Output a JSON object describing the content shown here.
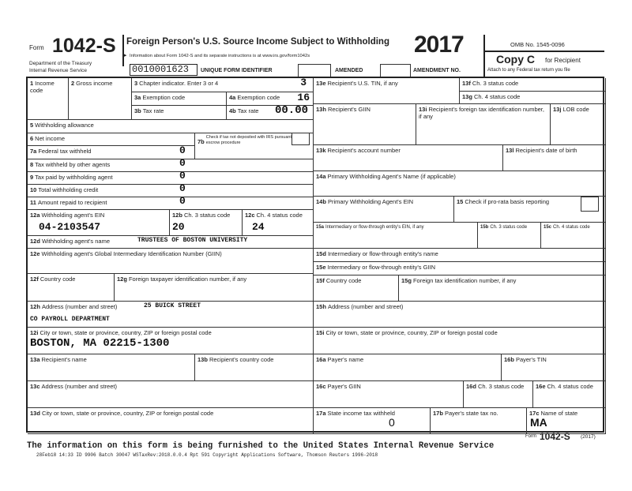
{
  "header": {
    "form_word": "Form",
    "form_number": "1042-S",
    "dept_line1": "Department of the Treasury",
    "dept_line2": "Internal Revenue Service",
    "title": "Foreign Person's U.S. Source Income Subject to Withholding",
    "info": "Information about Form 1042-S and its separate instructions is at www.irs.gov/form1042s",
    "year": "2017",
    "omb": "OMB No. 1545-0096",
    "copy": "Copy C",
    "copy_for": "for Recipient",
    "attach": "Attach to any Federal tax return you file",
    "unique_id": "0010001623",
    "unique_id_label": "UNIQUE FORM IDENTIFIER",
    "amended": "AMENDED",
    "amendment_no": "AMENDMENT NO."
  },
  "boxes": {
    "b1": {
      "num": "1",
      "label": "Income code"
    },
    "b2": {
      "num": "2",
      "label": "Gross income"
    },
    "b3": {
      "num": "3",
      "label": "Chapter indicator.  Enter 3 or 4",
      "value": "3"
    },
    "b3a": {
      "num": "3a",
      "label": "Exemption code"
    },
    "b4a": {
      "num": "4a",
      "label": "Exemption code",
      "value": "16"
    },
    "b3b": {
      "num": "3b",
      "label": "Tax rate"
    },
    "b4b": {
      "num": "4b",
      "label": "Tax rate",
      "value": "00.00"
    },
    "b5": {
      "num": "5",
      "label": "Withholding allowance"
    },
    "b6": {
      "num": "6",
      "label": "Net income"
    },
    "b7b": {
      "num": "7b",
      "label": "Check if tax not deposited with IRS pursuant to escrow procedure"
    },
    "b7a": {
      "num": "7a",
      "label": "Federal tax withheld",
      "value": "0"
    },
    "b8": {
      "num": "8",
      "label": "Tax withheld by other agents",
      "value": "0"
    },
    "b9": {
      "num": "9",
      "label": "Tax paid by withholding agent",
      "value": "0"
    },
    "b10": {
      "num": "10",
      "label": "Total withholding credit",
      "value": "0"
    },
    "b11": {
      "num": "11",
      "label": "Amount repaid to recipient",
      "value": "0"
    },
    "b12a": {
      "num": "12a",
      "label": "Withholding agent's EIN",
      "value": "04-2103547"
    },
    "b12b": {
      "num": "12b",
      "label": "Ch. 3 status code",
      "value": "20"
    },
    "b12c": {
      "num": "12c",
      "label": "Ch. 4 status code",
      "value": "24"
    },
    "b12d": {
      "num": "12d",
      "label": "Withholding agent's name",
      "value": "TRUSTEES OF BOSTON UNIVERSITY"
    },
    "b12e": {
      "num": "12e",
      "label": "Withholding agent's Global Intermediary Identification Number (GIIN)"
    },
    "b12f": {
      "num": "12f",
      "label": "Country code"
    },
    "b12g": {
      "num": "12g",
      "label": "Foreign taxpayer identification number, if any"
    },
    "b12h": {
      "num": "12h",
      "label": "Address (number and street)",
      "value": "25 BUICK STREET",
      "value2": "CO PAYROLL DEPARTMENT"
    },
    "b12i": {
      "num": "12i",
      "label": "City or town, state or province, country, ZIP or foreign postal code",
      "value": "BOSTON, MA 02215-1300"
    },
    "b13a": {
      "num": "13a",
      "label": "Recipient's name"
    },
    "b13b": {
      "num": "13b",
      "label": "Recipient's country code"
    },
    "b13c": {
      "num": "13c",
      "label": "Address (number and street)"
    },
    "b13d": {
      "num": "13d",
      "label": "City or town, state or province, country, ZIP or foreign postal code"
    },
    "b13e": {
      "num": "13e",
      "label": "Recipient's U.S. TIN, if any"
    },
    "b13f": {
      "num": "13f",
      "label": "Ch. 3 status code"
    },
    "b13g": {
      "num": "13g",
      "label": "Ch. 4 status code"
    },
    "b13h": {
      "num": "13h",
      "label": "Recipient's GIIN"
    },
    "b13i": {
      "num": "13i",
      "label": "Recipient's foreign tax identification number, if any"
    },
    "b13j": {
      "num": "13j",
      "label": "LOB code"
    },
    "b13k": {
      "num": "13k",
      "label": "Recipient's account number"
    },
    "b13l": {
      "num": "13l",
      "label": "Recipient's date of birth"
    },
    "b14a": {
      "num": "14a",
      "label": "Primary Withholding Agent's Name (if applicable)"
    },
    "b14b": {
      "num": "14b",
      "label": "Primary Withholding Agent's EIN"
    },
    "b15": {
      "num": "15",
      "label": "Check if pro-rata basis reporting"
    },
    "b15a": {
      "num": "15a",
      "label": "Intermediary or flow-through entity's EIN, if any"
    },
    "b15b": {
      "num": "15b",
      "label": "Ch. 3 status code"
    },
    "b15c": {
      "num": "15c",
      "label": "Ch. 4 status code"
    },
    "b15d": {
      "num": "15d",
      "label": "Intermediary or flow-through entity's name"
    },
    "b15e": {
      "num": "15e",
      "label": "Intermediary or flow-through entity's GIIN"
    },
    "b15f": {
      "num": "15f",
      "label": "Country code"
    },
    "b15g": {
      "num": "15g",
      "label": "Foreign tax identification number, if any"
    },
    "b15h": {
      "num": "15h",
      "label": "Address (number and street)"
    },
    "b15i": {
      "num": "15i",
      "label": "City or town, state or province, country, ZIP or foreign postal code"
    },
    "b16a": {
      "num": "16a",
      "label": "Payer's name"
    },
    "b16b": {
      "num": "16b",
      "label": "Payer's TIN"
    },
    "b16c": {
      "num": "16c",
      "label": "Payer's GIIN"
    },
    "b16d": {
      "num": "16d",
      "label": "Ch. 3 status code"
    },
    "b16e": {
      "num": "16e",
      "label": "Ch. 4 status code"
    },
    "b17a": {
      "num": "17a",
      "label": "State income tax withheld",
      "value": "0"
    },
    "b17b": {
      "num": "17b",
      "label": "Payer's state tax no."
    },
    "b17c": {
      "num": "17c",
      "label": "Name of state",
      "value": "MA"
    }
  },
  "footer": {
    "form_word": "Form",
    "form_number": "1042-S",
    "year": "(2017)",
    "notice": "The information on this form is being furnished to the United States Internal Revenue Service",
    "print_line": "28Feb18 14:33 ID 9906  Batch 30047  WSTaxRev:2018.0.0.4  Rpt 591  Copyright Applications Software, Thomson Reuters 1996-2018"
  }
}
